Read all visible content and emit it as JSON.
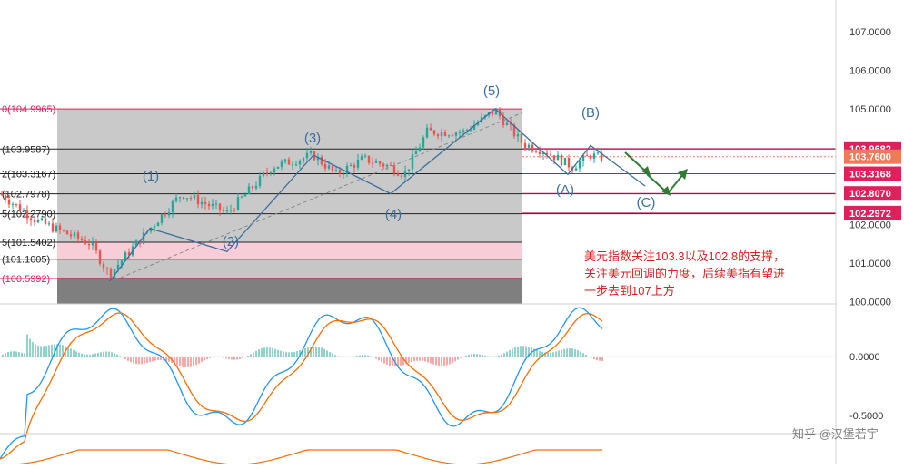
{
  "chart_data": {
    "type": "candlestick",
    "title": "",
    "y_axis": {
      "ticks": [
        "107.0000",
        "106.0000",
        "105.0000",
        "102.0000",
        "101.0000",
        "100.0000"
      ],
      "lim": [
        100.0,
        107.7
      ]
    },
    "fib_levels": [
      {
        "label": "0(104.9965)",
        "value": 104.9965,
        "color": "#e0205a"
      },
      {
        "label": "(103.9587)",
        "value": 103.9587,
        "color": "#222222"
      },
      {
        "label": "2(103.3167)",
        "value": 103.3167,
        "color": "#222222"
      },
      {
        "label": "(102.7978)",
        "value": 102.7978,
        "color": "#222222"
      },
      {
        "label": "5(102.2790)",
        "value": 102.279,
        "color": "#222222"
      },
      {
        "label": "5(101.5402)",
        "value": 101.5402,
        "color": "#222222"
      },
      {
        "label": "(101.1005)",
        "value": 101.1005,
        "color": "#222222"
      },
      {
        "label": "(100.5992)",
        "value": 100.5992,
        "color": "#e0205a"
      }
    ],
    "price_badges": [
      {
        "text": "103.9682",
        "color": "#e0205a",
        "value": 103.9682
      },
      {
        "text": "103.7600",
        "color": "#ef7a5a",
        "value": 103.76
      },
      {
        "text": "103.3168",
        "color": "#e0205a",
        "value": 103.3168
      },
      {
        "text": "102.8070",
        "color": "#e0205a",
        "value": 102.807
      },
      {
        "text": "102.2972",
        "color": "#e0205a",
        "value": 102.2972
      }
    ],
    "wave_labels": [
      "(1)",
      "(2)",
      "(3)",
      "(4)",
      "(5)",
      "(A)",
      "(B)",
      "(C)"
    ],
    "annotation": [
      "美元指数关注103.3以及102.8的支撑，",
      "关注美元回调的力度，后续美指有望进",
      "一步去到107上方"
    ],
    "macd_axis": {
      "ticks": [
        "0.0000",
        "-0.5000"
      ]
    },
    "colors": {
      "up": "#26a69a",
      "down": "#ef5350",
      "macd": "#2196f3",
      "signal": "#ff6d00",
      "wave": "#3a6fa0",
      "arrow": "#2e7d32"
    }
  },
  "watermark": "知乎 @汉堡若宇"
}
